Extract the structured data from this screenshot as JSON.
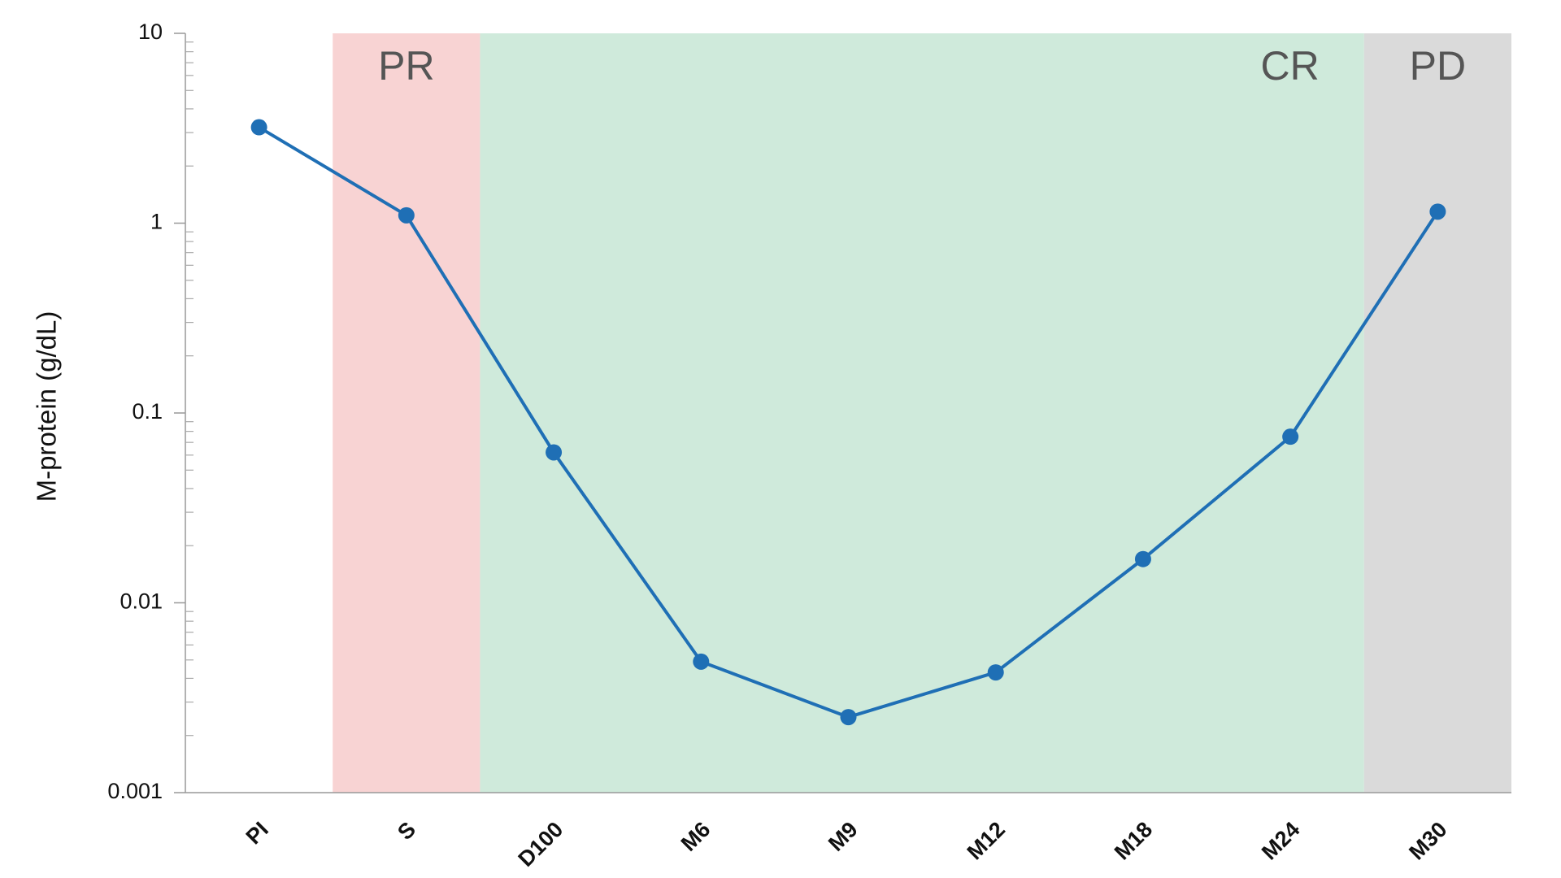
{
  "chart_data": {
    "type": "line",
    "ylabel": "M-protein (g/dL)",
    "categories": [
      "PI",
      "S",
      "D100",
      "M6",
      "M9",
      "M12",
      "M18",
      "M24",
      "M30"
    ],
    "series": [
      {
        "name": "M-protein",
        "color": "#1f6fb5",
        "values": [
          3.2,
          1.1,
          0.062,
          0.0049,
          0.0025,
          0.0043,
          0.017,
          0.075,
          1.15
        ]
      }
    ],
    "ylim": [
      0.001,
      10
    ],
    "yticks": [
      0.001,
      0.01,
      0.1,
      1,
      10
    ],
    "log_y": true,
    "regions": [
      {
        "label": "PR",
        "from": "S",
        "to": "S",
        "color": "#f8d3d3"
      },
      {
        "label": "CR",
        "from": "D100",
        "to": "M24",
        "color": "#cfeadb"
      },
      {
        "label": "PD",
        "from": "M30",
        "to": "M30",
        "color": "#dadada"
      }
    ]
  }
}
